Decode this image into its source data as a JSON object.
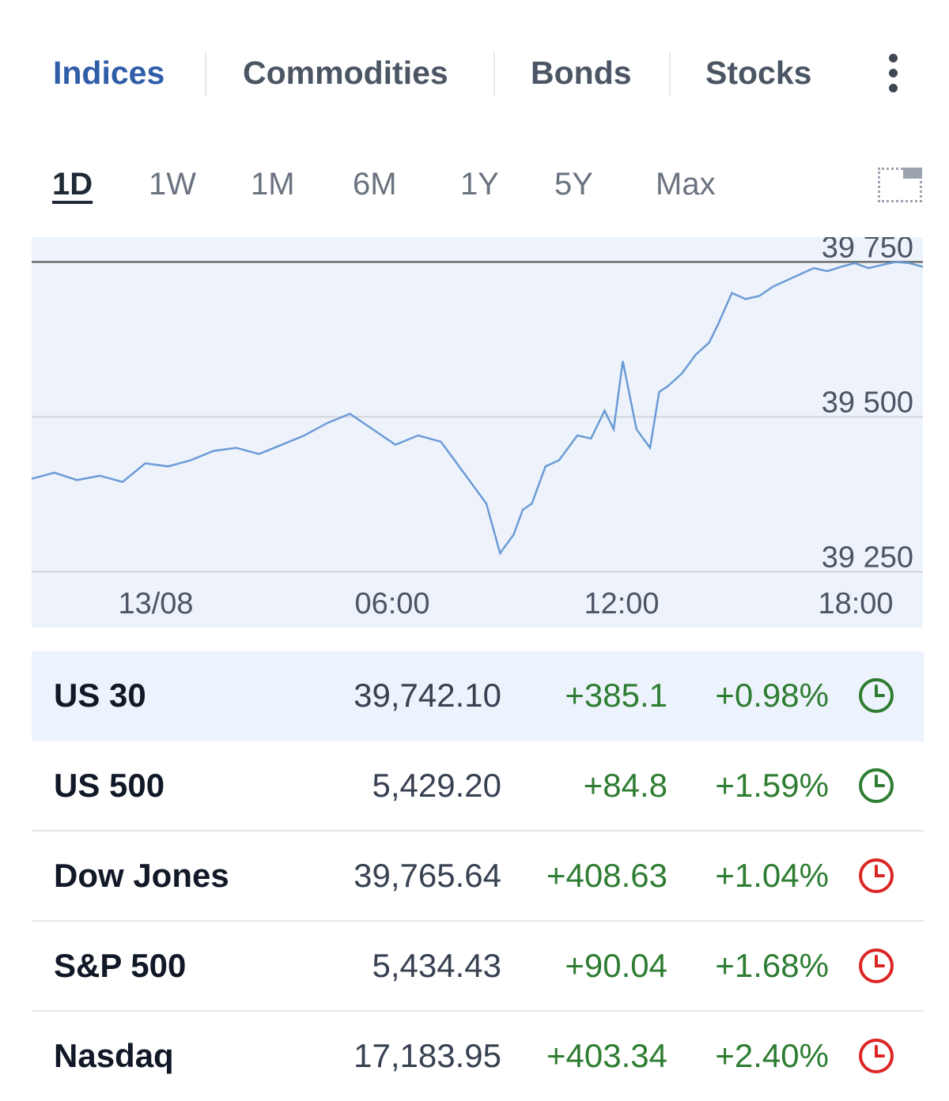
{
  "categories": [
    {
      "label": "Indices",
      "active": true
    },
    {
      "label": "Commodities",
      "active": false
    },
    {
      "label": "Bonds",
      "active": false
    },
    {
      "label": "Stocks",
      "active": false
    }
  ],
  "more_icon": "vertical-dots-icon",
  "ranges": [
    {
      "label": "1D",
      "active": true
    },
    {
      "label": "1W",
      "active": false
    },
    {
      "label": "1M",
      "active": false
    },
    {
      "label": "6M",
      "active": false
    },
    {
      "label": "1Y",
      "active": false
    },
    {
      "label": "5Y",
      "active": false
    },
    {
      "label": "Max",
      "active": false
    }
  ],
  "fullscreen_icon": "expand-chart-icon",
  "chart_data": {
    "type": "area",
    "y_ticks": [
      "39 750",
      "39 500",
      "39 250"
    ],
    "y_tick_values": [
      39750,
      39500,
      39250
    ],
    "x_ticks": [
      "13/08",
      "06:00",
      "12:00",
      "18:00"
    ],
    "ylim": [
      39160,
      39790
    ],
    "grid": true,
    "x": [
      0.0,
      0.5,
      1.0,
      1.5,
      2.0,
      2.5,
      3.0,
      3.5,
      4.0,
      4.5,
      5.0,
      5.5,
      6.0,
      6.5,
      7.0,
      7.5,
      8.0,
      8.5,
      9.0,
      9.5,
      10.0,
      10.3,
      10.6,
      10.8,
      11.0,
      11.3,
      11.6,
      12.0,
      12.3,
      12.6,
      12.8,
      13.0,
      13.3,
      13.6,
      13.8,
      14.0,
      14.3,
      14.6,
      14.9,
      15.1,
      15.4,
      15.7,
      16.0,
      16.3,
      16.6,
      16.9,
      17.2,
      17.5,
      17.8,
      18.1,
      18.4,
      18.7,
      19.0,
      19.3,
      19.6
    ],
    "values": [
      39400,
      39410,
      39398,
      39405,
      39395,
      39425,
      39420,
      39430,
      39445,
      39450,
      39440,
      39455,
      39470,
      39490,
      39505,
      39480,
      39455,
      39470,
      39460,
      39410,
      39360,
      39280,
      39310,
      39350,
      39360,
      39420,
      39430,
      39470,
      39465,
      39510,
      39480,
      39590,
      39480,
      39450,
      39540,
      39550,
      39570,
      39600,
      39620,
      39650,
      39700,
      39690,
      39695,
      39710,
      39720,
      39730,
      39740,
      39735,
      39742,
      39748,
      39740,
      39745,
      39750,
      39748,
      39742
    ],
    "line_color": "#6b9bd6",
    "fill_color": "#eef3fb",
    "reference_line_color": "#6b6b6b"
  },
  "quotes": [
    {
      "name": "US 30",
      "last": "39,742.10",
      "change": "+385.1",
      "pct": "+0.98%",
      "clock_color": "#2e7d32",
      "clock_icon": "clock-icon",
      "selected": true
    },
    {
      "name": "US 500",
      "last": "5,429.20",
      "change": "+84.8",
      "pct": "+1.59%",
      "clock_color": "#2e7d32",
      "clock_icon": "clock-icon",
      "selected": false
    },
    {
      "name": "Dow Jones",
      "last": "39,765.64",
      "change": "+408.63",
      "pct": "+1.04%",
      "clock_color": "#dc2626",
      "clock_icon": "clock-icon",
      "selected": false
    },
    {
      "name": "S&P 500",
      "last": "5,434.43",
      "change": "+90.04",
      "pct": "+1.68%",
      "clock_color": "#dc2626",
      "clock_icon": "clock-icon",
      "selected": false
    },
    {
      "name": "Nasdaq",
      "last": "17,183.95",
      "change": "+403.34",
      "pct": "+2.40%",
      "clock_color": "#dc2626",
      "clock_icon": "clock-icon",
      "selected": false
    }
  ]
}
